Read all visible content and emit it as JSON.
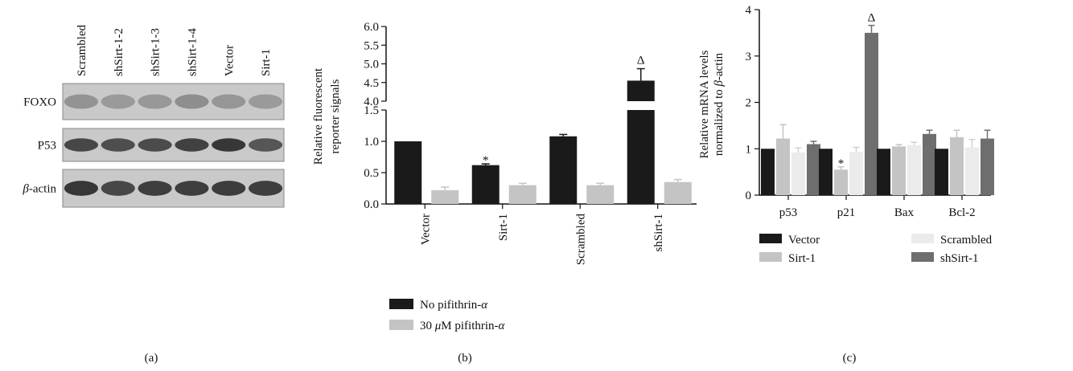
{
  "panel_labels": [
    "(a)",
    "(b)",
    "(c)"
  ],
  "blot": {
    "lanes": [
      "Scrambled",
      "shSirt-1-2",
      "shSirt-1-3",
      "shSirt-1-4",
      "Vector",
      "Sirt-1"
    ],
    "rows": [
      {
        "label": "FOXO",
        "intensity": [
          0.35,
          0.3,
          0.32,
          0.38,
          0.33,
          0.3
        ]
      },
      {
        "label": "P53",
        "intensity": [
          0.85,
          0.8,
          0.82,
          0.88,
          0.95,
          0.75
        ]
      },
      {
        "label": "β-actin",
        "label_italic": "β",
        "label_rest": "-actin",
        "intensity": [
          0.95,
          0.85,
          0.9,
          0.9,
          0.92,
          0.9
        ]
      }
    ]
  },
  "chart_data": [
    {
      "type": "bar",
      "panel": "(b)",
      "ylabel": [
        "Relative fluorescent",
        "reporter signals"
      ],
      "categories": [
        "Vector",
        "Sirt-1",
        "Scrambled",
        "shSirt-1"
      ],
      "series": [
        {
          "name": "No pifithrin-α",
          "name_main": "No pifithrin-",
          "name_greek": "α",
          "color": "#1a1a1a",
          "values": [
            1.0,
            0.62,
            1.08,
            4.55
          ],
          "errors": [
            0.0,
            0.02,
            0.03,
            0.32
          ]
        },
        {
          "name": "30 μM pifithrin-α",
          "name_pre": "30 ",
          "name_greek1": "μ",
          "name_mid": "M pifithrin-",
          "name_greek2": "α",
          "color": "#c4c4c4",
          "values": [
            0.22,
            0.3,
            0.3,
            0.35
          ],
          "errors": [
            0.05,
            0.03,
            0.03,
            0.04
          ]
        }
      ],
      "axis_break": true,
      "y_lower": {
        "range": [
          0,
          1.5
        ],
        "ticks": [
          "0.0",
          "0.5",
          "1.0",
          "1.5"
        ]
      },
      "y_upper": {
        "range": [
          4.0,
          6.0
        ],
        "ticks": [
          "4.0",
          "4.5",
          "5.0",
          "5.5",
          "6.0"
        ]
      },
      "annotations": [
        {
          "category": "Sirt-1",
          "series": 0,
          "text": "*"
        },
        {
          "category": "shSirt-1",
          "series": 0,
          "text": "Δ"
        }
      ]
    },
    {
      "type": "bar",
      "panel": "(c)",
      "ylabel": [
        "Relative mRNA levels",
        "normalized to β-actin"
      ],
      "ylabel2_main": "normalized to ",
      "ylabel2_greek": "β",
      "ylabel2_rest": "-actin",
      "categories": [
        "p53",
        "p21",
        "Bax",
        "Bcl-2"
      ],
      "ylim": [
        0,
        4
      ],
      "yticks": [
        "0",
        "1",
        "2",
        "3",
        "4"
      ],
      "series": [
        {
          "name": "Vector",
          "color": "#1a1a1a",
          "values": [
            1.0,
            1.0,
            1.0,
            1.0
          ],
          "errors": [
            0,
            0,
            0,
            0
          ]
        },
        {
          "name": "Sirt-1",
          "color": "#c4c4c4",
          "values": [
            1.22,
            0.55,
            1.05,
            1.25
          ],
          "errors": [
            0.3,
            0.06,
            0.04,
            0.15
          ]
        },
        {
          "name": "Scrambled",
          "color": "#ebebeb",
          "values": [
            0.92,
            0.93,
            1.08,
            1.03
          ],
          "errors": [
            0.1,
            0.1,
            0.06,
            0.17
          ]
        },
        {
          "name": "shSirt-1",
          "color": "#6e6e6e",
          "values": [
            1.1,
            3.5,
            1.32,
            1.22
          ],
          "errors": [
            0.06,
            0.16,
            0.08,
            0.18
          ]
        }
      ],
      "annotations": [
        {
          "category": "p21",
          "series": 1,
          "text": "*"
        },
        {
          "category": "p21",
          "series": 3,
          "text": "Δ"
        }
      ]
    }
  ]
}
